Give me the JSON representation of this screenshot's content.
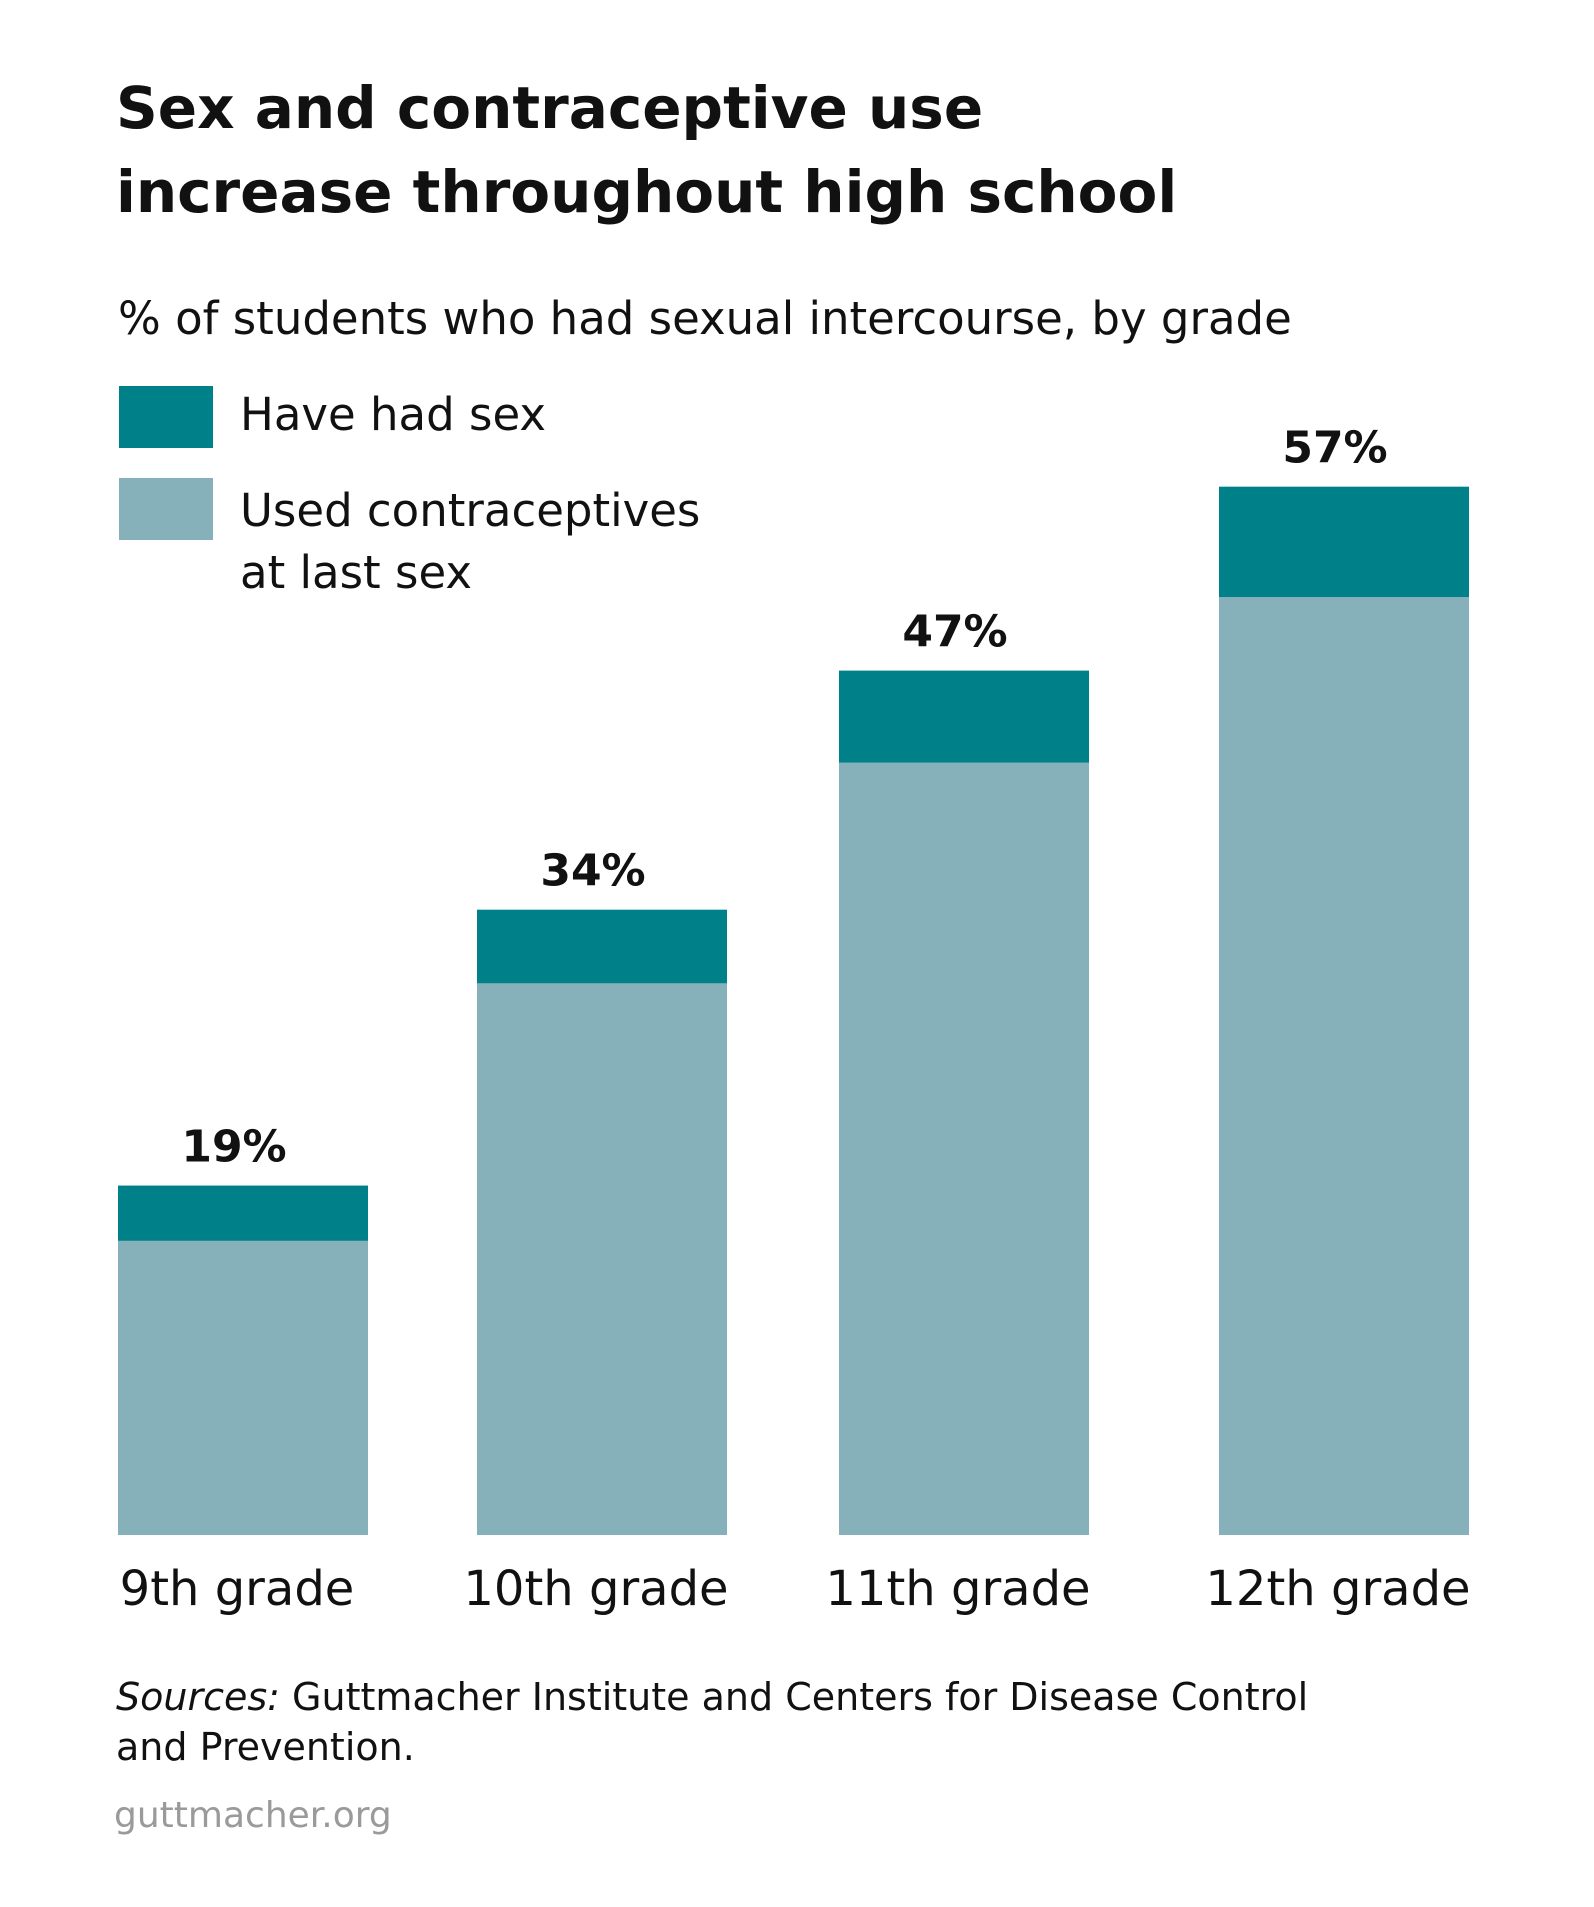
{
  "chart_data": {
    "type": "bar",
    "title": "Sex and contraceptive use increase throughout high school",
    "subtitle": "% of students who had sexual intercourse, by grade",
    "categories": [
      "9th grade",
      "10th grade",
      "11th grade",
      "12th grade"
    ],
    "series": [
      {
        "name": "Have had sex",
        "color": "#00818a",
        "values": [
          19,
          34,
          47,
          57
        ],
        "value_labels": [
          "19%",
          "34%",
          "47%",
          "57%"
        ]
      },
      {
        "name": "Used contraceptives at last sex",
        "color": "#87b1ba",
        "values": [
          16,
          30,
          42,
          51
        ]
      }
    ],
    "ylim": [
      0,
      60
    ],
    "grid": false,
    "sources_label": "Sources:",
    "sources": "Guttmacher Institute and Centers for Disease Control and Prevention.",
    "footer": "guttmacher.org"
  }
}
